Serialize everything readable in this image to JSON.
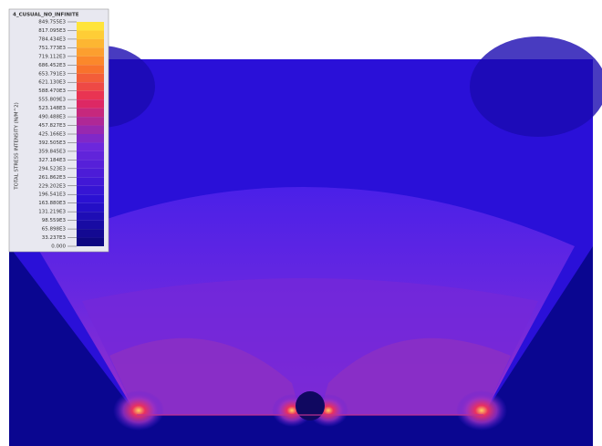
{
  "legend": {
    "title": "4_CUSUAL_NO_INFINITE",
    "axis_label": "TOTAL STRESS INTENSITY (N/M^2)",
    "levels": [
      "849.755E3",
      "817.095E3",
      "784.434E3",
      "751.773E3",
      "719.112E3",
      "686.452E3",
      "653.791E3",
      "621.130E3",
      "588.470E3",
      "555.809E3",
      "523.148E3",
      "490.488E3",
      "457.827E3",
      "425.166E3",
      "392.505E3",
      "359.845E3",
      "327.184E3",
      "294.523E3",
      "261.862E3",
      "229.202E3",
      "196.541E3",
      "163.880E3",
      "131.219E3",
      "98.559E3",
      "65.898E3",
      "33.237E3",
      "0.000"
    ]
  }
}
